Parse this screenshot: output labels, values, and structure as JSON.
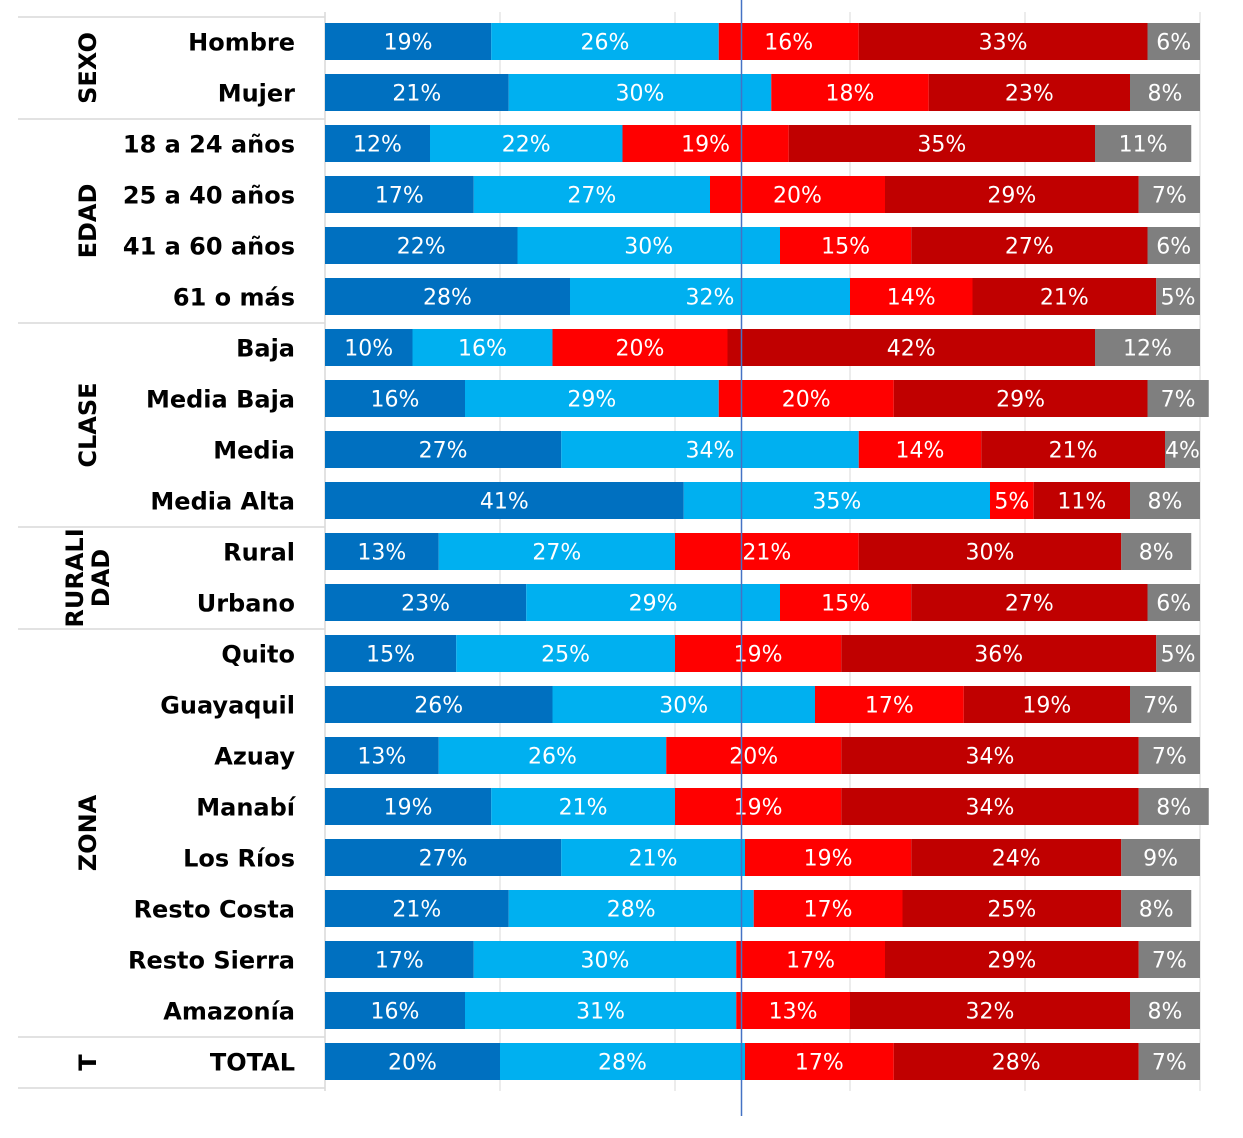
{
  "chart_data": {
    "type": "bar",
    "orientation": "horizontal",
    "stacked": true,
    "categories": [
      "Hombre",
      "Mujer",
      "18 a 24 años",
      "25 a 40 años",
      "41 a 60 años",
      "61 o más",
      "Baja",
      "Media Baja",
      "Media",
      "Media Alta",
      "Rural",
      "Urbano",
      "Quito",
      "Guayaquil",
      "Azuay",
      "Manabí",
      "Los Ríos",
      "Resto Costa",
      "Resto Sierra",
      "Amazonía",
      "TOTAL"
    ],
    "groups": [
      {
        "label": "SEXO",
        "lines": [
          "SEXO"
        ],
        "start": 0,
        "end": 1
      },
      {
        "label": "EDAD",
        "lines": [
          "EDAD"
        ],
        "start": 2,
        "end": 5
      },
      {
        "label": "CLASE",
        "lines": [
          "CLASE"
        ],
        "start": 6,
        "end": 9
      },
      {
        "label": "RURALIDAD",
        "lines": [
          "RURALI",
          "DAD"
        ],
        "start": 10,
        "end": 11
      },
      {
        "label": "ZONA",
        "lines": [
          "ZONA"
        ],
        "start": 12,
        "end": 19
      },
      {
        "label": "T",
        "lines": [
          "T"
        ],
        "start": 20,
        "end": 20
      }
    ],
    "series": [
      {
        "color": "#0070c0",
        "values": [
          19,
          21,
          12,
          17,
          22,
          28,
          10,
          16,
          27,
          41,
          13,
          23,
          15,
          26,
          13,
          19,
          27,
          21,
          17,
          16,
          20
        ]
      },
      {
        "color": "#00b0f0",
        "values": [
          26,
          30,
          22,
          27,
          30,
          32,
          16,
          29,
          34,
          35,
          27,
          29,
          25,
          30,
          26,
          21,
          21,
          28,
          30,
          31,
          28
        ]
      },
      {
        "color": "#ff0000",
        "values": [
          16,
          18,
          19,
          20,
          15,
          14,
          20,
          20,
          14,
          5,
          21,
          15,
          19,
          17,
          20,
          19,
          19,
          17,
          17,
          13,
          17
        ]
      },
      {
        "color": "#c00000",
        "values": [
          33,
          23,
          35,
          29,
          27,
          21,
          42,
          29,
          21,
          11,
          30,
          27,
          36,
          19,
          34,
          34,
          24,
          25,
          29,
          32,
          28
        ]
      },
      {
        "color": "#7f7f7f",
        "values": [
          6,
          8,
          11,
          7,
          6,
          5,
          12,
          7,
          4,
          8,
          8,
          6,
          5,
          7,
          7,
          8,
          9,
          8,
          7,
          8,
          7
        ]
      }
    ],
    "data_labels": [
      [
        "19%",
        "26%",
        "16%",
        "33%",
        "6%"
      ],
      [
        "21%",
        "30%",
        "18%",
        "23%",
        "8%"
      ],
      [
        "12%",
        "22%",
        "19%",
        "35%",
        "11%"
      ],
      [
        "17%",
        "27%",
        "20%",
        "29%",
        "7%"
      ],
      [
        "22%",
        "30%",
        "15%",
        "27%",
        "6%"
      ],
      [
        "28%",
        "32%",
        "14%",
        "21%",
        "5%"
      ],
      [
        "10%",
        "16%",
        "20%",
        "42%",
        "12%"
      ],
      [
        "16%",
        "29%",
        "20%",
        "29%",
        "7%"
      ],
      [
        "27%",
        "34%",
        "14%",
        "21%",
        "4%"
      ],
      [
        "41%",
        "35%",
        "5%",
        "11%",
        "8%"
      ],
      [
        "13%",
        "27%",
        "21%",
        "30%",
        "8%"
      ],
      [
        "23%",
        "29%",
        "15%",
        "27%",
        "6%"
      ],
      [
        "15%",
        "25%",
        "19%",
        "36%",
        "5%"
      ],
      [
        "26%",
        "30%",
        "17%",
        "19%",
        "7%"
      ],
      [
        "13%",
        "26%",
        "20%",
        "34%",
        "7%"
      ],
      [
        "19%",
        "21%",
        "19%",
        "34%",
        "8%"
      ],
      [
        "27%",
        "21%",
        "19%",
        "24%",
        "9%"
      ],
      [
        "21%",
        "28%",
        "17%",
        "25%",
        "8%"
      ],
      [
        "17%",
        "30%",
        "17%",
        "29%",
        "7%"
      ],
      [
        "16%",
        "31%",
        "13%",
        "32%",
        "8%"
      ],
      [
        "20%",
        "28%",
        "17%",
        "28%",
        "7%"
      ]
    ],
    "xticks": [
      "0%",
      "20%",
      "40%",
      "60%",
      "80%",
      "100%"
    ],
    "xlim": [
      0,
      100
    ],
    "reference_line": {
      "x": 47.6,
      "color": "#4472c4"
    },
    "title": "",
    "xlabel": "",
    "ylabel": "",
    "legend": "none",
    "grid": "vertical"
  }
}
